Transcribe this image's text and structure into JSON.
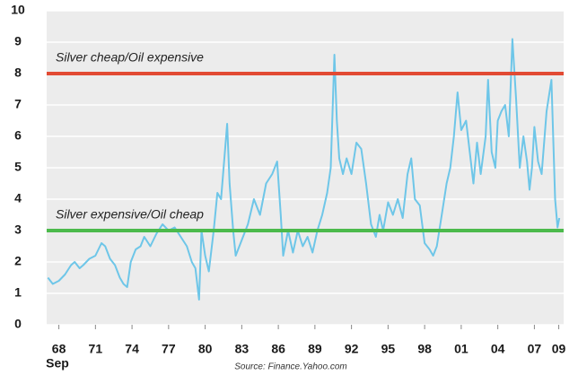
{
  "chart_data": {
    "type": "line",
    "x": [
      1967.1,
      1967.5,
      1968,
      1968.5,
      1969,
      1969.3,
      1969.7,
      1970,
      1970.5,
      1971,
      1971.5,
      1971.8,
      1972.2,
      1972.6,
      1973,
      1973.3,
      1973.6,
      1973.9,
      1974.3,
      1974.7,
      1975,
      1975.5,
      1976,
      1976.5,
      1977,
      1977.5,
      1978,
      1978.5,
      1978.9,
      1979.2,
      1979.5,
      1979.7,
      1980,
      1980.3,
      1980.7,
      1981,
      1981.3,
      1981.8,
      1982,
      1982.3,
      1982.5,
      1983,
      1983.5,
      1984,
      1984.5,
      1985,
      1985.5,
      1985.9,
      1986.2,
      1986.4,
      1986.8,
      1987.2,
      1987.6,
      1988,
      1988.4,
      1988.8,
      1989.2,
      1989.6,
      1990,
      1990.3,
      1990.6,
      1990.8,
      1991,
      1991.3,
      1991.6,
      1992,
      1992.4,
      1992.8,
      1993.2,
      1993.6,
      1994,
      1994.3,
      1994.6,
      1995,
      1995.4,
      1995.8,
      1996.2,
      1996.6,
      1996.9,
      1997.2,
      1997.6,
      1998,
      1998.4,
      1998.7,
      1999,
      1999.4,
      1999.8,
      2000.1,
      2000.4,
      2000.7,
      2001,
      2001.4,
      2001.7,
      2002,
      2002.3,
      2002.6,
      2003,
      2003.2,
      2003.5,
      2003.8,
      2004,
      2004.3,
      2004.6,
      2004.9,
      2005.2,
      2005.5,
      2005.8,
      2006.1,
      2006.4,
      2006.6,
      2006.8,
      2007,
      2007.3,
      2007.6,
      2008,
      2008.4,
      2008.7,
      2008.9,
      2009.05
    ],
    "series": [
      {
        "color": "#6ec6e8",
        "values": [
          1.5,
          1.3,
          1.4,
          1.6,
          1.9,
          2.0,
          1.8,
          1.9,
          2.1,
          2.2,
          2.6,
          2.5,
          2.1,
          1.9,
          1.5,
          1.3,
          1.2,
          2.0,
          2.4,
          2.5,
          2.8,
          2.5,
          2.9,
          3.2,
          3.0,
          3.1,
          2.8,
          2.5,
          2.0,
          1.8,
          0.8,
          3.0,
          2.2,
          1.7,
          3.0,
          4.2,
          4.0,
          6.4,
          4.5,
          3.0,
          2.2,
          2.7,
          3.2,
          4.0,
          3.5,
          4.5,
          4.8,
          5.2,
          3.5,
          2.2,
          3.0,
          2.3,
          3.0,
          2.5,
          2.8,
          2.3,
          3.0,
          3.5,
          4.2,
          5.0,
          8.6,
          6.5,
          5.3,
          4.8,
          5.3,
          4.8,
          5.8,
          5.6,
          4.5,
          3.2,
          2.8,
          3.5,
          3.0,
          3.9,
          3.5,
          4.0,
          3.4,
          4.8,
          5.3,
          4.0,
          3.8,
          2.6,
          2.4,
          2.2,
          2.5,
          3.5,
          4.5,
          5.0,
          6.0,
          7.4,
          6.2,
          6.5,
          5.5,
          4.5,
          5.8,
          4.8,
          6.0,
          7.8,
          5.5,
          5.0,
          6.5,
          6.8,
          7.0,
          6.0,
          9.1,
          7.2,
          5.0,
          6.0,
          5.2,
          4.3,
          5.0,
          6.3,
          5.2,
          4.8,
          6.8,
          7.8,
          4.0,
          3.1,
          3.4
        ]
      }
    ],
    "reference_lines": [
      {
        "value": 8,
        "color": "#e24a33",
        "label": "Silver cheap/Oil expensive"
      },
      {
        "value": 3,
        "color": "#4cba4c",
        "label": "Silver expensive/Oil cheap"
      }
    ],
    "xlim": [
      1967,
      2009.4
    ],
    "ylim": [
      0,
      10
    ],
    "yticks": [
      0,
      1,
      2,
      3,
      4,
      5,
      6,
      7,
      8,
      9,
      10
    ],
    "xticks": [
      {
        "value": 1968,
        "label": "68"
      },
      {
        "value": 1971,
        "label": "71"
      },
      {
        "value": 1974,
        "label": "74"
      },
      {
        "value": 1977,
        "label": "77"
      },
      {
        "value": 1980,
        "label": "80"
      },
      {
        "value": 1983,
        "label": "83"
      },
      {
        "value": 1986,
        "label": "86"
      },
      {
        "value": 1989,
        "label": "89"
      },
      {
        "value": 1992,
        "label": "92"
      },
      {
        "value": 1995,
        "label": "95"
      },
      {
        "value": 1998,
        "label": "98"
      },
      {
        "value": 2001,
        "label": "01"
      },
      {
        "value": 2004,
        "label": "04"
      },
      {
        "value": 2007,
        "label": "07"
      },
      {
        "value": 2009,
        "label": "09"
      }
    ],
    "x_note": "Sep",
    "source": "Source: Finance.Yahoo.com",
    "grid": true
  }
}
